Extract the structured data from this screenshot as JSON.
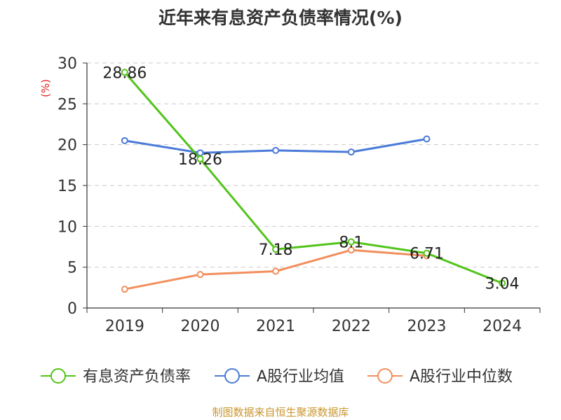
{
  "title": "近年来有息资产负债率情况(%)",
  "footer": "制图数据来自恒生聚源数据库",
  "chart_data": {
    "type": "line",
    "title": "近年来有息资产负债率情况(%)",
    "ylabel": "(%)",
    "ylim": [
      0,
      30
    ],
    "yticks": [
      0,
      5,
      10,
      15,
      20,
      25,
      30
    ],
    "categories": [
      "2019",
      "2020",
      "2021",
      "2022",
      "2023",
      "2024"
    ],
    "grid": true,
    "legend_position": "bottom",
    "series": [
      {
        "name": "有息资产负债率",
        "color": "#52c41a",
        "values": [
          28.86,
          18.26,
          7.18,
          8.1,
          6.71,
          3.04
        ],
        "labels": [
          "28.86",
          "18.26",
          "7.18",
          "8.1",
          "6.71",
          "3.04"
        ]
      },
      {
        "name": "A股行业均值",
        "color": "#4a7bd8",
        "values": [
          20.5,
          19.0,
          19.3,
          19.1,
          20.7,
          null
        ]
      },
      {
        "name": "A股行业中位数",
        "color": "#f28e5c",
        "values": [
          2.3,
          4.1,
          4.5,
          7.1,
          6.4,
          null
        ]
      }
    ]
  }
}
